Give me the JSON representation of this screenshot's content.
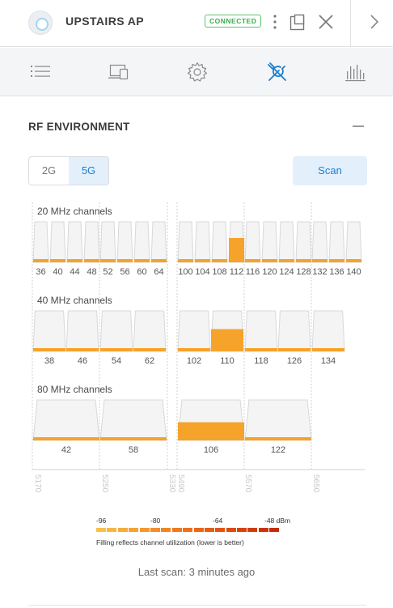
{
  "header": {
    "device_name": "UPSTAIRS AP",
    "status_badge": "CONNECTED",
    "icons": [
      "device-icon",
      "more-vertical-icon",
      "pop-out-icon",
      "close-icon",
      "chevron-right-icon"
    ]
  },
  "tabs": [
    {
      "name": "tab-list",
      "icon": "list-icon",
      "active": false
    },
    {
      "name": "tab-devices",
      "icon": "devices-icon",
      "active": false
    },
    {
      "name": "tab-settings",
      "icon": "gear-icon",
      "active": false
    },
    {
      "name": "tab-tools",
      "icon": "tools-icon",
      "active": true
    },
    {
      "name": "tab-stats",
      "icon": "bar-chart-icon",
      "active": false
    }
  ],
  "section": {
    "title": "RF ENVIRONMENT",
    "collapse_icon": "minus-icon"
  },
  "band_toggle": {
    "options": [
      "2G",
      "5G"
    ],
    "selected": "5G"
  },
  "scan_button": "Scan",
  "chart_data": {
    "type": "bar",
    "groups": [
      {
        "label": "20 MHz channels",
        "channels": [
          {
            "ch": "36",
            "util": 0.06
          },
          {
            "ch": "40",
            "util": 0.06
          },
          {
            "ch": "44",
            "util": 0.06
          },
          {
            "ch": "48",
            "util": 0.06
          },
          {
            "ch": "52",
            "util": 0.06
          },
          {
            "ch": "56",
            "util": 0.06
          },
          {
            "ch": "60",
            "util": 0.06
          },
          {
            "ch": "64",
            "util": 0.06
          },
          {
            "ch": "100",
            "util": 0.05
          },
          {
            "ch": "104",
            "util": 0.05
          },
          {
            "ch": "108",
            "util": 0.05
          },
          {
            "ch": "112",
            "util": 0.6
          },
          {
            "ch": "116",
            "util": 0.05
          },
          {
            "ch": "120",
            "util": 0.05
          },
          {
            "ch": "124",
            "util": 0.05
          },
          {
            "ch": "128",
            "util": 0.05
          },
          {
            "ch": "132",
            "util": 0.07
          },
          {
            "ch": "136",
            "util": 0.08
          },
          {
            "ch": "140",
            "util": 0.05
          }
        ]
      },
      {
        "label": "40 MHz channels",
        "channels": [
          {
            "ch": "38",
            "util": 0.06
          },
          {
            "ch": "46",
            "util": 0.06
          },
          {
            "ch": "54",
            "util": 0.06
          },
          {
            "ch": "62",
            "util": 0.06
          },
          {
            "ch": "102",
            "util": 0.06
          },
          {
            "ch": "110",
            "util": 0.55
          },
          {
            "ch": "118",
            "util": 0.06
          },
          {
            "ch": "126",
            "util": 0.06
          },
          {
            "ch": "134",
            "util": 0.08
          }
        ]
      },
      {
        "label": "80 MHz channels",
        "channels": [
          {
            "ch": "42",
            "util": 0.07
          },
          {
            "ch": "58",
            "util": 0.07
          },
          {
            "ch": "106",
            "util": 0.45
          },
          {
            "ch": "122",
            "util": 0.07
          }
        ]
      }
    ],
    "freq_ticks": [
      "5170",
      "5250",
      "5330",
      "5490",
      "5570",
      "5650"
    ],
    "fill_color": "#f6a32b",
    "channel_bg": "#f4f4f4",
    "channel_border": "#d8d8d8"
  },
  "scale": {
    "labels": [
      "-96",
      "-80",
      "-64",
      "-48 dBm"
    ],
    "colors": [
      "#f9c047",
      "#f8b640",
      "#f6ac3a",
      "#f5a234",
      "#f4982e",
      "#f28e29",
      "#f08424",
      "#ee7a20",
      "#ec701c",
      "#e96618",
      "#e55c14",
      "#e15311",
      "#dc4a0e",
      "#d7420c",
      "#d13a0a",
      "#ca3308",
      "#c32c06"
    ],
    "note": "Filling reflects channel utilization (lower is better)"
  },
  "last_scan": "Last scan: 3 minutes ago"
}
